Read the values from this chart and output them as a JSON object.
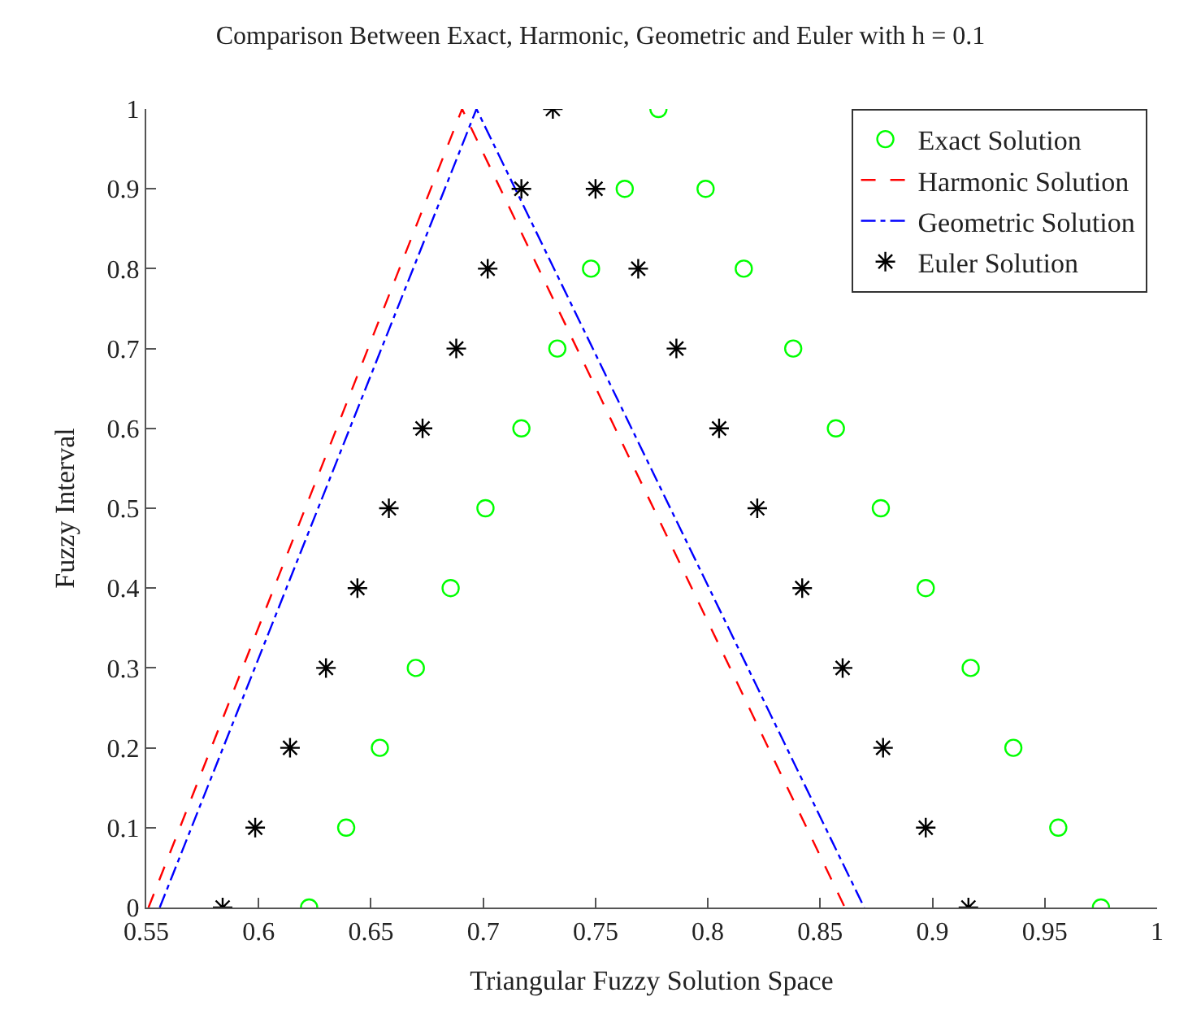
{
  "chart_data": {
    "type": "scatter",
    "title": "Comparison Between Exact, Harmonic, Geometric and Euler with h = 0.1",
    "xlabel": "Triangular Fuzzy Solution Space",
    "ylabel": "Fuzzy Interval",
    "xlim": [
      0.55,
      1
    ],
    "xticks": [
      0.55,
      0.6,
      0.65,
      0.7,
      0.75,
      0.8,
      0.85,
      0.9,
      0.95,
      1
    ],
    "ylim": [
      0,
      1
    ],
    "yticks": [
      0,
      0.1,
      0.2,
      0.3,
      0.4,
      0.5,
      0.6,
      0.7,
      0.8,
      0.9,
      1
    ],
    "legend": "top right",
    "series": [
      {
        "name": "Exact Solution",
        "marker": "circle",
        "color": "#00ff00",
        "x": [
          0.6225,
          0.639,
          0.654,
          0.67,
          0.6855,
          0.701,
          0.717,
          0.733,
          0.748,
          0.763,
          0.778,
          0.799,
          0.816,
          0.838,
          0.857,
          0.877,
          0.897,
          0.917,
          0.936,
          0.956,
          0.975
        ],
        "values": [
          0,
          0.1,
          0.2,
          0.3,
          0.4,
          0.5,
          0.6,
          0.7,
          0.8,
          0.9,
          1,
          0.9,
          0.8,
          0.7,
          0.6,
          0.5,
          0.4,
          0.3,
          0.2,
          0.1,
          0
        ]
      },
      {
        "name": "Harmonic Solution",
        "type": "line",
        "line_style": "dashed",
        "marker": "none",
        "color": "#ff0000",
        "x": [
          0.551,
          0.6906,
          0.861
        ],
        "values": [
          0,
          1,
          0
        ]
      },
      {
        "name": "Geometric Solution",
        "type": "line",
        "line_style": "dashdot",
        "marker": "none",
        "color": "#0000ff",
        "x": [
          0.556,
          0.697,
          0.8696
        ],
        "values": [
          0,
          1,
          0
        ]
      },
      {
        "name": "Euler Solution",
        "marker": "cross",
        "color": "#000000",
        "x": [
          0.584,
          0.5985,
          0.614,
          0.63,
          0.644,
          0.658,
          0.673,
          0.688,
          0.702,
          0.717,
          0.731,
          0.75,
          0.769,
          0.786,
          0.805,
          0.822,
          0.842,
          0.86,
          0.878,
          0.897,
          0.916
        ],
        "values": [
          0,
          0.1,
          0.2,
          0.3,
          0.4,
          0.5,
          0.6,
          0.7,
          0.8,
          0.9,
          1,
          0.9,
          0.8,
          0.7,
          0.6,
          0.5,
          0.4,
          0.3,
          0.2,
          0.1,
          0
        ]
      }
    ]
  }
}
